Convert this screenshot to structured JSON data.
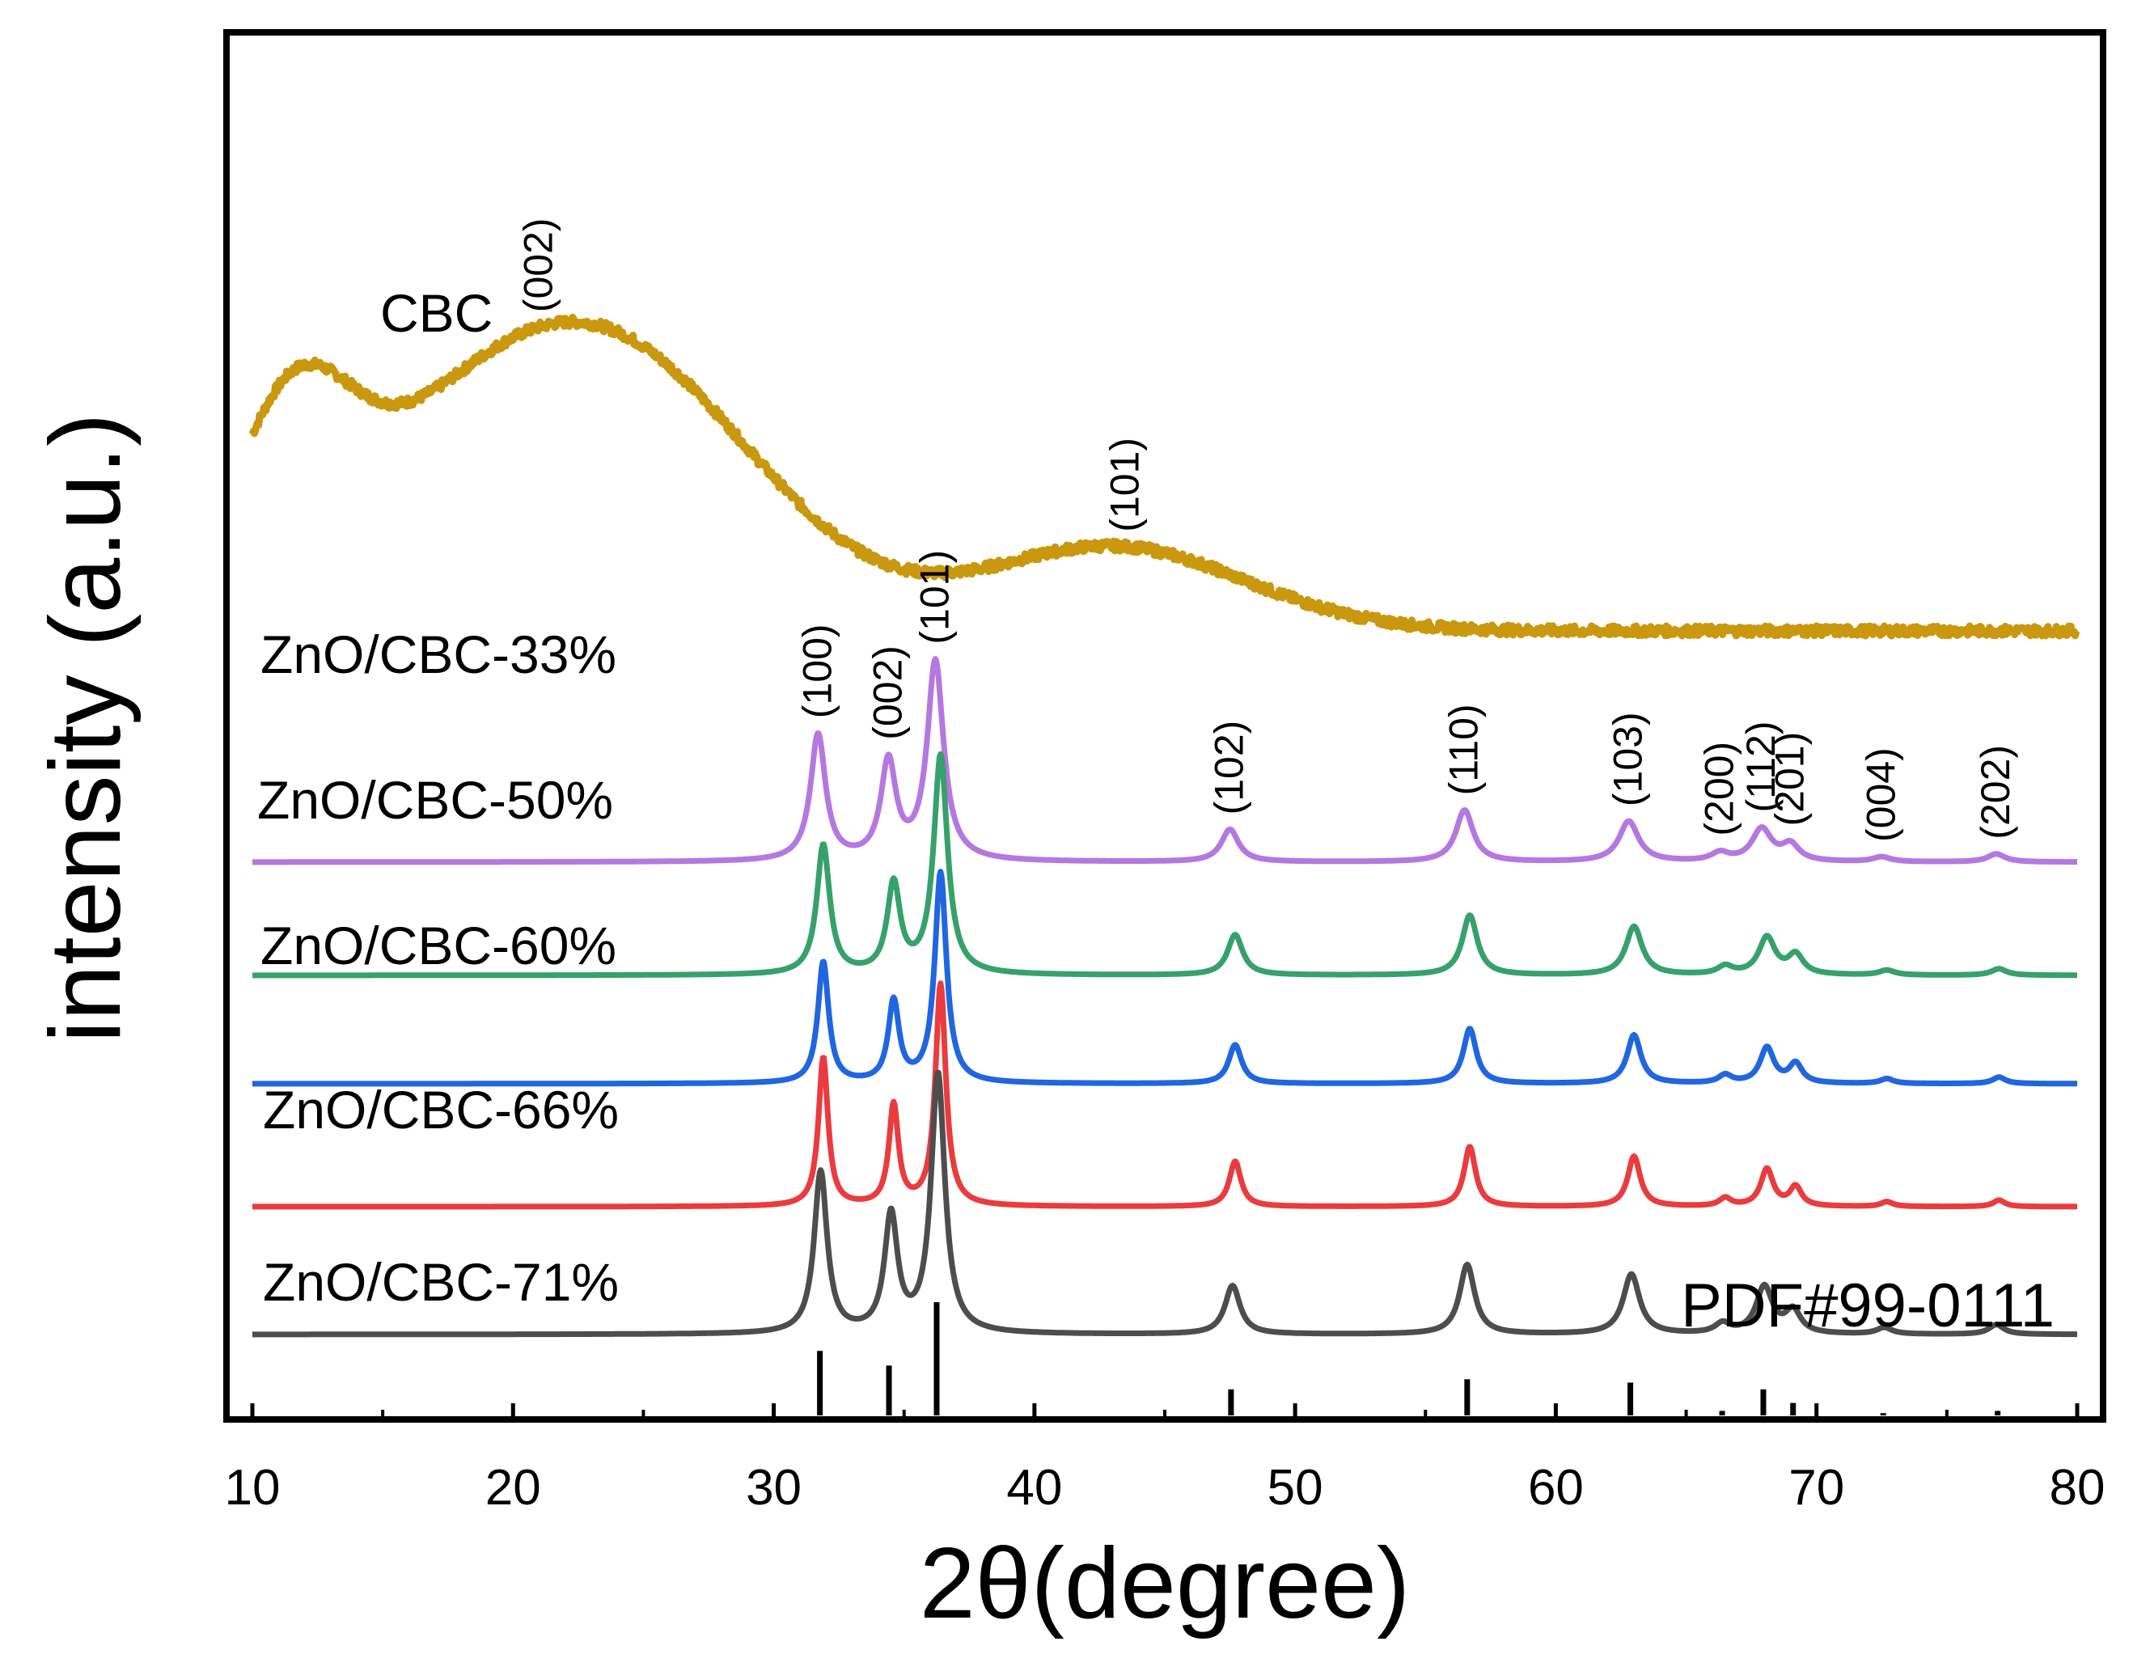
{
  "chart_data": {
    "type": "line",
    "xlabel": "2θ(degree)",
    "ylabel": "intensity (a.u.)",
    "xlim": [
      10,
      80
    ],
    "xticks": [
      10,
      20,
      30,
      40,
      50,
      60,
      70,
      80
    ],
    "series": [
      {
        "name": "CBC",
        "color": "#c9980e",
        "baseline": 4.6,
        "noise": 0.06,
        "peaks": [],
        "hump": [
          {
            "center": 20.5,
            "height": 1.55,
            "width": 6.5
          },
          {
            "center": 11.5,
            "height": 1.0,
            "width": 2.2
          },
          {
            "center": 43.0,
            "height": 0.52,
            "width": 5.0
          },
          {
            "center": 26.0,
            "height": 0.55,
            "width": 5.0
          }
        ],
        "tail": 0.02,
        "hkl": [
          {
            "label": "(002)",
            "x": 21.0
          },
          {
            "label": "(101)",
            "x": 43.5
          }
        ]
      },
      {
        "name": "ZnO/CBC-33%",
        "color": "#b577e0",
        "baseline": 3.17,
        "noise": 0.0,
        "peaks": [
          {
            "x": 31.7,
            "h": 0.78,
            "w": 0.35
          },
          {
            "x": 34.4,
            "h": 0.6,
            "w": 0.35
          },
          {
            "x": 36.2,
            "h": 1.23,
            "w": 0.38
          },
          {
            "x": 47.5,
            "h": 0.2,
            "w": 0.4
          },
          {
            "x": 56.5,
            "h": 0.32,
            "w": 0.4
          },
          {
            "x": 62.8,
            "h": 0.25,
            "w": 0.45
          },
          {
            "x": 66.3,
            "h": 0.05,
            "w": 0.4
          },
          {
            "x": 67.9,
            "h": 0.2,
            "w": 0.45
          },
          {
            "x": 69.0,
            "h": 0.1,
            "w": 0.4
          },
          {
            "x": 72.5,
            "h": 0.03,
            "w": 0.4
          },
          {
            "x": 76.9,
            "h": 0.05,
            "w": 0.4
          }
        ],
        "hkl": [
          {
            "label": "(100)",
            "x": 31.7
          },
          {
            "label": "(002)",
            "x": 34.4
          },
          {
            "label": "(101)",
            "x": 36.2
          },
          {
            "label": "(102)",
            "x": 47.5
          },
          {
            "label": "(110)",
            "x": 56.5
          },
          {
            "label": "(103)",
            "x": 62.8
          },
          {
            "label": "(200)",
            "x": 66.3
          },
          {
            "label": "(112)",
            "x": 67.9
          },
          {
            "label": "(201)",
            "x": 69.0
          },
          {
            "label": "(004)",
            "x": 72.5
          },
          {
            "label": "(202)",
            "x": 76.9
          }
        ]
      },
      {
        "name": "ZnO/CBC-50%",
        "color": "#36a16b",
        "baseline": 2.47,
        "noise": 0.0,
        "peaks": [
          {
            "x": 31.9,
            "h": 0.8,
            "w": 0.3
          },
          {
            "x": 34.6,
            "h": 0.55,
            "w": 0.3
          },
          {
            "x": 36.4,
            "h": 1.35,
            "w": 0.32
          },
          {
            "x": 47.7,
            "h": 0.25,
            "w": 0.35
          },
          {
            "x": 56.7,
            "h": 0.37,
            "w": 0.35
          },
          {
            "x": 63.0,
            "h": 0.3,
            "w": 0.38
          },
          {
            "x": 66.5,
            "h": 0.05,
            "w": 0.35
          },
          {
            "x": 68.1,
            "h": 0.23,
            "w": 0.38
          },
          {
            "x": 69.2,
            "h": 0.12,
            "w": 0.35
          },
          {
            "x": 72.7,
            "h": 0.03,
            "w": 0.35
          },
          {
            "x": 77.0,
            "h": 0.04,
            "w": 0.35
          }
        ],
        "hkl": []
      },
      {
        "name": "ZnO/CBC-60%",
        "color": "#1f66e0",
        "baseline": 1.8,
        "noise": 0.0,
        "peaks": [
          {
            "x": 31.9,
            "h": 0.75,
            "w": 0.25
          },
          {
            "x": 34.6,
            "h": 0.5,
            "w": 0.25
          },
          {
            "x": 36.4,
            "h": 1.3,
            "w": 0.27
          },
          {
            "x": 47.7,
            "h": 0.24,
            "w": 0.3
          },
          {
            "x": 56.7,
            "h": 0.34,
            "w": 0.3
          },
          {
            "x": 63.0,
            "h": 0.3,
            "w": 0.32
          },
          {
            "x": 66.5,
            "h": 0.05,
            "w": 0.3
          },
          {
            "x": 68.1,
            "h": 0.22,
            "w": 0.32
          },
          {
            "x": 69.2,
            "h": 0.12,
            "w": 0.3
          },
          {
            "x": 72.7,
            "h": 0.03,
            "w": 0.3
          },
          {
            "x": 77.0,
            "h": 0.04,
            "w": 0.3
          }
        ],
        "hkl": []
      },
      {
        "name": "ZnO/CBC-66%",
        "color": "#ea3b3e",
        "baseline": 1.04,
        "noise": 0.0,
        "peaks": [
          {
            "x": 31.9,
            "h": 0.92,
            "w": 0.22
          },
          {
            "x": 34.6,
            "h": 0.62,
            "w": 0.22
          },
          {
            "x": 36.4,
            "h": 1.37,
            "w": 0.24
          },
          {
            "x": 47.7,
            "h": 0.28,
            "w": 0.27
          },
          {
            "x": 56.7,
            "h": 0.37,
            "w": 0.27
          },
          {
            "x": 63.0,
            "h": 0.31,
            "w": 0.29
          },
          {
            "x": 66.5,
            "h": 0.05,
            "w": 0.27
          },
          {
            "x": 68.1,
            "h": 0.23,
            "w": 0.29
          },
          {
            "x": 69.2,
            "h": 0.12,
            "w": 0.27
          },
          {
            "x": 72.7,
            "h": 0.03,
            "w": 0.27
          },
          {
            "x": 77.0,
            "h": 0.04,
            "w": 0.27
          }
        ],
        "hkl": []
      },
      {
        "name": "ZnO/CBC-71%",
        "color": "#4d4d4d",
        "baseline": 0.25,
        "noise": 0.0,
        "peaks": [
          {
            "x": 31.8,
            "h": 1.0,
            "w": 0.3
          },
          {
            "x": 34.5,
            "h": 0.72,
            "w": 0.3
          },
          {
            "x": 36.3,
            "h": 1.6,
            "w": 0.32
          },
          {
            "x": 47.6,
            "h": 0.3,
            "w": 0.35
          },
          {
            "x": 56.6,
            "h": 0.43,
            "w": 0.35
          },
          {
            "x": 62.9,
            "h": 0.37,
            "w": 0.38
          },
          {
            "x": 66.4,
            "h": 0.06,
            "w": 0.35
          },
          {
            "x": 68.0,
            "h": 0.29,
            "w": 0.38
          },
          {
            "x": 69.1,
            "h": 0.14,
            "w": 0.35
          },
          {
            "x": 72.6,
            "h": 0.04,
            "w": 0.35
          },
          {
            "x": 76.9,
            "h": 0.06,
            "w": 0.35
          }
        ],
        "hkl": []
      }
    ],
    "reference": {
      "name": "PDF#99-0111",
      "color": "#000000",
      "sticks": [
        {
          "x": 31.77,
          "h": 0.57
        },
        {
          "x": 34.42,
          "h": 0.44
        },
        {
          "x": 36.25,
          "h": 1.0
        },
        {
          "x": 47.54,
          "h": 0.23
        },
        {
          "x": 56.6,
          "h": 0.32
        },
        {
          "x": 62.86,
          "h": 0.29
        },
        {
          "x": 66.38,
          "h": 0.04
        },
        {
          "x": 67.96,
          "h": 0.23
        },
        {
          "x": 69.1,
          "h": 0.11
        },
        {
          "x": 72.56,
          "h": 0.02
        },
        {
          "x": 76.95,
          "h": 0.04
        }
      ]
    }
  }
}
